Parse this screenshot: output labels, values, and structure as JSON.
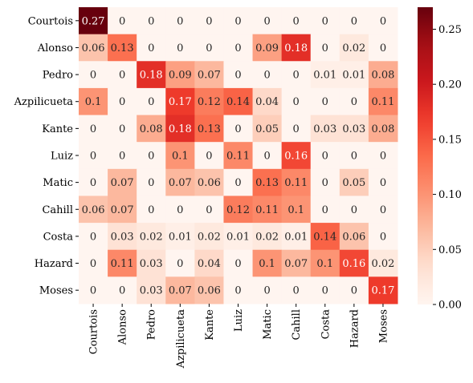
{
  "chart_data": {
    "type": "heatmap",
    "title": "",
    "xlabel": "",
    "ylabel": "",
    "x_categories": [
      "Courtois",
      "Alonso",
      "Pedro",
      "Azpilicueta",
      "Kante",
      "Luiz",
      "Matic",
      "Cahill",
      "Costa",
      "Hazard",
      "Moses"
    ],
    "y_categories": [
      "Courtois",
      "Alonso",
      "Pedro",
      "Azpilicueta",
      "Kante",
      "Luiz",
      "Matic",
      "Cahill",
      "Costa",
      "Hazard",
      "Moses"
    ],
    "values": [
      [
        0.27,
        0,
        0,
        0,
        0,
        0,
        0,
        0,
        0,
        0,
        0
      ],
      [
        0.06,
        0.13,
        0,
        0,
        0,
        0,
        0.09,
        0.18,
        0,
        0.02,
        0
      ],
      [
        0,
        0,
        0.18,
        0.09,
        0.07,
        0,
        0,
        0,
        0.01,
        0.01,
        0.08
      ],
      [
        0.1,
        0,
        0,
        0.17,
        0.12,
        0.14,
        0.04,
        0,
        0,
        0,
        0.11
      ],
      [
        0,
        0,
        0.08,
        0.18,
        0.13,
        0,
        0.05,
        0,
        0.03,
        0.03,
        0.08
      ],
      [
        0,
        0,
        0,
        0.1,
        0,
        0.11,
        0,
        0.16,
        0,
        0,
        0
      ],
      [
        0,
        0.07,
        0,
        0.07,
        0.06,
        0,
        0.13,
        0.11,
        0,
        0.05,
        0
      ],
      [
        0.06,
        0.07,
        0,
        0,
        0,
        0.12,
        0.11,
        0.1,
        0,
        0,
        0
      ],
      [
        0,
        0.03,
        0.02,
        0.01,
        0.02,
        0.01,
        0.02,
        0.01,
        0.14,
        0.06,
        0
      ],
      [
        0,
        0.11,
        0.03,
        0,
        0.04,
        0,
        0.1,
        0.07,
        0.1,
        0.16,
        0.02
      ],
      [
        0,
        0,
        0.03,
        0.07,
        0.06,
        0,
        0,
        0,
        0,
        0,
        0.17
      ]
    ],
    "colormap": "Reds",
    "vmin": 0,
    "vmax": 0.27,
    "colorbar_ticks": [
      "0.00",
      "0.05",
      "0.10",
      "0.15",
      "0.20",
      "0.25"
    ],
    "colorbar_tick_values": [
      0,
      0.05,
      0.1,
      0.15,
      0.2,
      0.25
    ]
  }
}
